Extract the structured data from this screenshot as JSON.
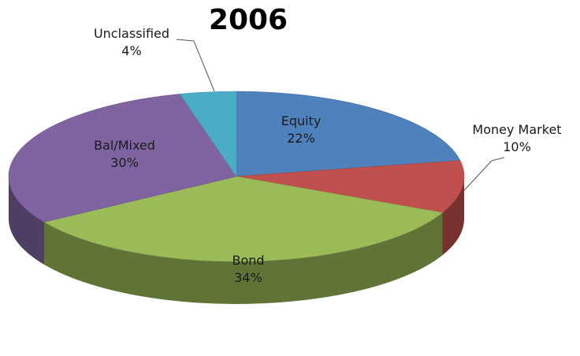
{
  "chart_data": {
    "type": "pie",
    "title": "2006",
    "slices": [
      {
        "name": "Equity",
        "value": 22,
        "value_label": "22%",
        "color": "#4f81bd"
      },
      {
        "name": "Money Market",
        "value": 10,
        "value_label": "10%",
        "color": "#c0504d"
      },
      {
        "name": "Bond",
        "value": 34,
        "value_label": "34%",
        "color": "#9bbb59"
      },
      {
        "name": "Bal/Mixed",
        "value": 30,
        "value_label": "30%",
        "color": "#8064a2"
      },
      {
        "name": "Unclassified",
        "value": 4,
        "value_label": "4%",
        "color": "#4bacc6"
      }
    ],
    "style": "3d-pie",
    "legend": "none"
  }
}
